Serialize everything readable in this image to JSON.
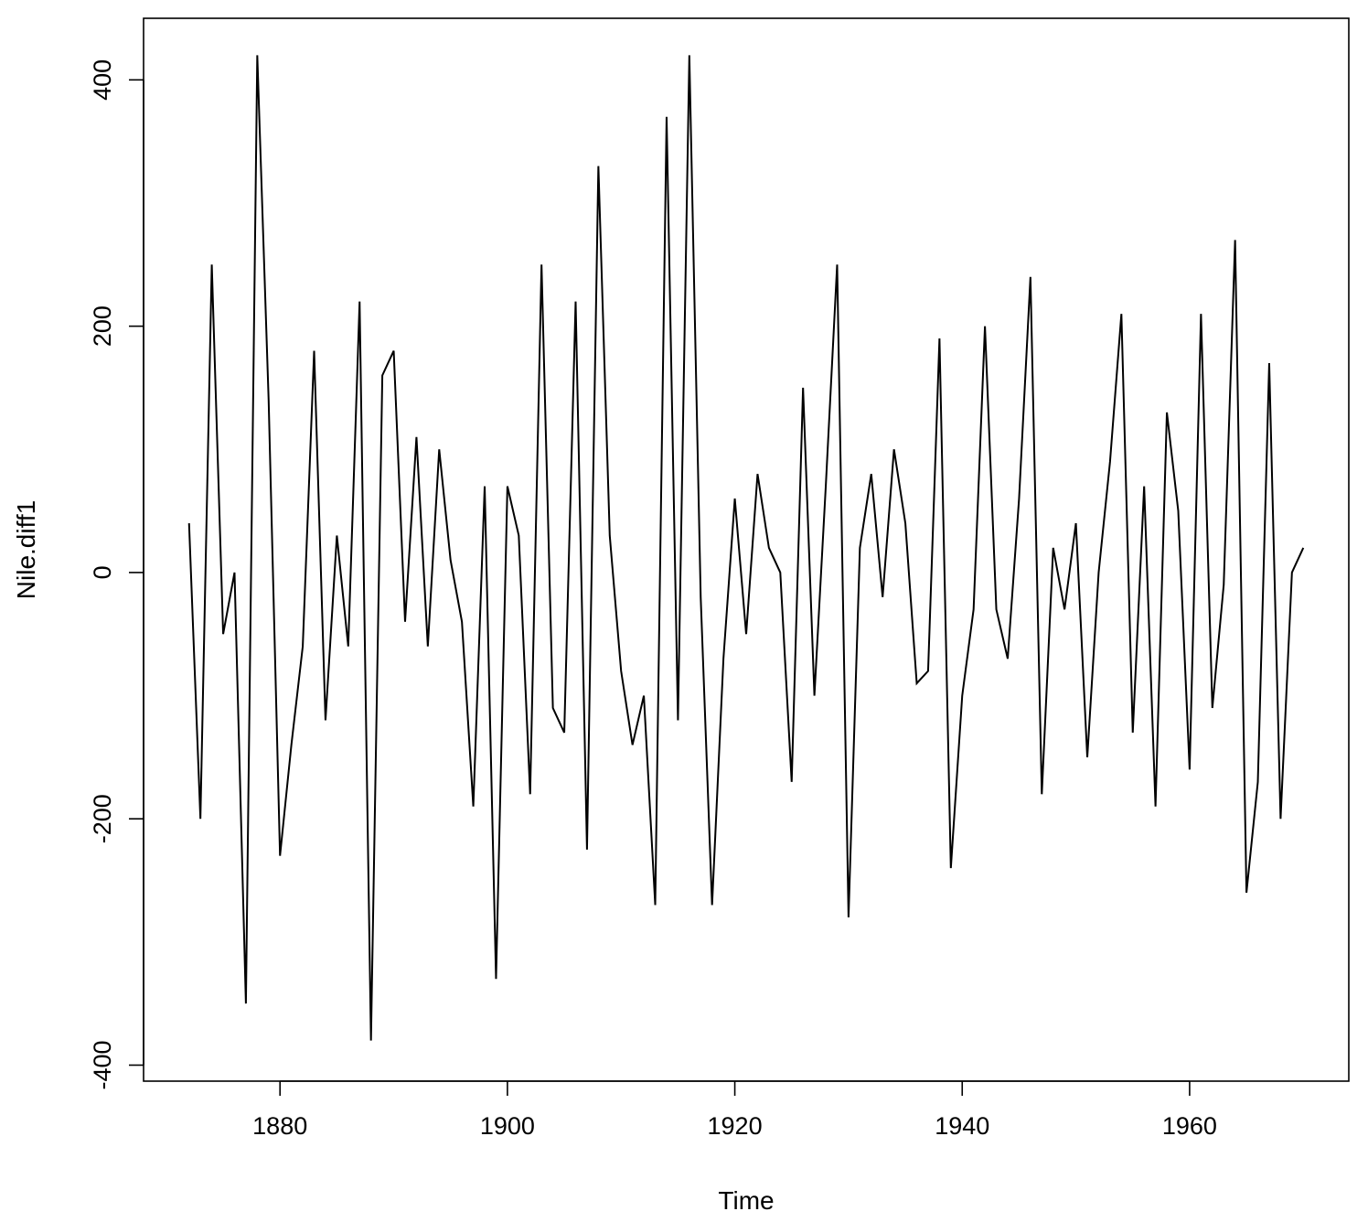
{
  "chart_data": {
    "type": "line",
    "title": "",
    "xlabel": "Time",
    "ylabel": "Nile.diff1",
    "xlim": [
      1868,
      1974
    ],
    "ylim": [
      -413,
      450
    ],
    "x_ticks": [
      1880,
      1900,
      1920,
      1940,
      1960
    ],
    "x_tick_labels": [
      "1880",
      "1900",
      "1920",
      "1940",
      "1960"
    ],
    "y_ticks": [
      -400,
      -200,
      0,
      200,
      400
    ],
    "y_tick_labels": [
      "-400",
      "-200",
      "0",
      "200",
      "400"
    ],
    "grid": false,
    "legend": "none",
    "line_color": "#000000",
    "series": [
      {
        "x": [
          1872,
          1873,
          1874,
          1875,
          1876,
          1877,
          1878,
          1879,
          1880,
          1881,
          1882,
          1883,
          1884,
          1885,
          1886,
          1887,
          1888,
          1889,
          1890,
          1891,
          1892,
          1893,
          1894,
          1895,
          1896,
          1897,
          1898,
          1899,
          1900,
          1901,
          1902,
          1903,
          1904,
          1905,
          1906,
          1907,
          1908,
          1909,
          1910,
          1911,
          1912,
          1913,
          1914,
          1915,
          1916,
          1917,
          1918,
          1919,
          1920,
          1921,
          1922,
          1923,
          1924,
          1925,
          1926,
          1927,
          1928,
          1929,
          1930,
          1931,
          1932,
          1933,
          1934,
          1935,
          1936,
          1937,
          1938,
          1939,
          1940,
          1941,
          1942,
          1943,
          1944,
          1945,
          1946,
          1947,
          1948,
          1949,
          1950,
          1951,
          1952,
          1953,
          1954,
          1955,
          1956,
          1957,
          1958,
          1959,
          1960,
          1961,
          1962,
          1963,
          1964,
          1965,
          1966,
          1967,
          1968,
          1969,
          1970
        ],
        "values": [
          40,
          -200,
          250,
          -50,
          0,
          -350,
          420,
          140,
          -230,
          -140,
          -60,
          180,
          -120,
          30,
          -60,
          220,
          -380,
          160,
          180,
          -40,
          110,
          -60,
          100,
          10,
          -40,
          -190,
          70,
          -330,
          70,
          30,
          -180,
          250,
          -110,
          -130,
          220,
          -225,
          330,
          30,
          -80,
          -140,
          -100,
          -270,
          370,
          -120,
          420,
          -20,
          -270,
          -70,
          60,
          -50,
          80,
          20,
          0,
          -170,
          150,
          -100,
          70,
          250,
          -280,
          20,
          80,
          -20,
          100,
          40,
          -90,
          -80,
          190,
          -240,
          -100,
          -30,
          200,
          -30,
          -70,
          60,
          240,
          -180,
          20,
          -30,
          40,
          -150,
          0,
          90,
          210,
          -130,
          70,
          -190,
          130,
          50,
          -160,
          210,
          -110,
          -10,
          270,
          -260,
          -170,
          170,
          -200,
          0,
          20
        ]
      }
    ]
  }
}
